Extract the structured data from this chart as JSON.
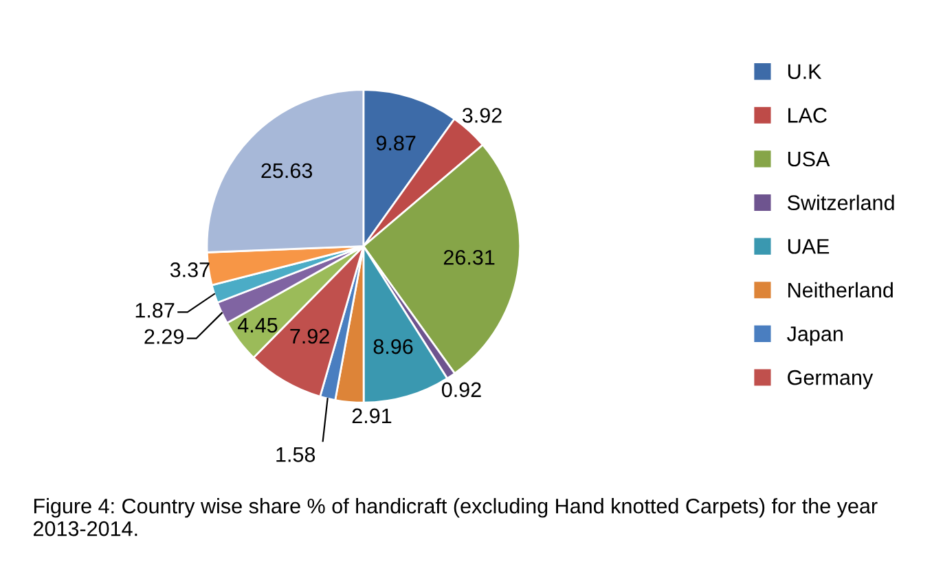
{
  "chart_data": {
    "type": "pie",
    "categories": [
      "U.K",
      "LAC",
      "USA",
      "Switzerland",
      "UAE",
      "Neitherland",
      "Japan",
      "Germany",
      null,
      null,
      null,
      null,
      null
    ],
    "values": [
      9.87,
      3.92,
      26.31,
      0.92,
      8.96,
      2.91,
      1.58,
      7.92,
      4.45,
      2.29,
      1.87,
      3.37,
      25.63
    ],
    "colors": [
      "#3d6ba8",
      "#be4b48",
      "#86a548",
      "#6e548f",
      "#3a98b0",
      "#dd8438",
      "#4a7ec0",
      "#c0504d",
      "#9bbb59",
      "#8064a2",
      "#4bacc6",
      "#f79646",
      "#a7b8d8"
    ],
    "data_labels": true,
    "legend": "right",
    "annotations": [
      "Figure 4: Country wise share % of handicraft (excluding Hand knotted Carpets) for the year 2013-2014."
    ]
  }
}
